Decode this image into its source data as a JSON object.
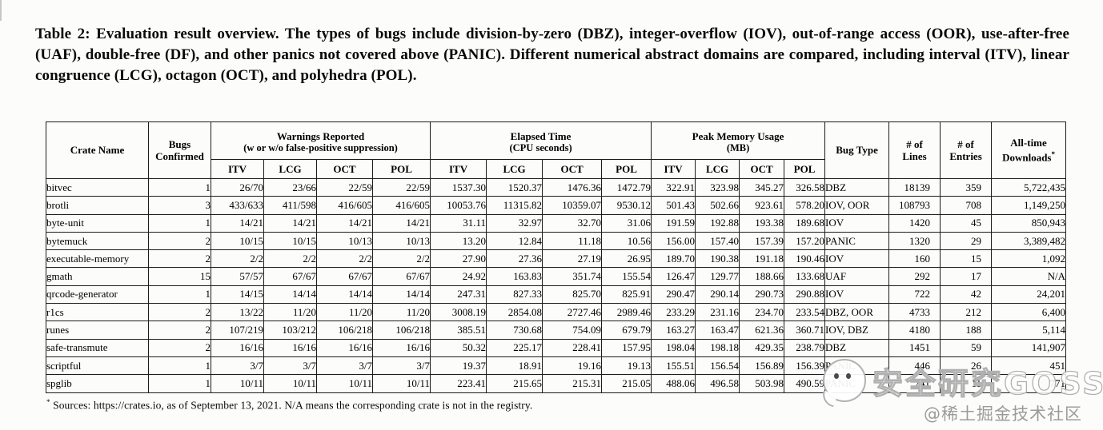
{
  "caption": "Table 2: Evaluation result overview. The types of bugs include division-by-zero (DBZ), integer-overflow (IOV), out-of-range access (OOR), use-after-free (UAF), double-free (DF), and other panics not covered above (PANIC). Different numerical abstract domains are compared, including interval (ITV), linear congruence (LCG), octagon (OCT), and polyhedra (POL).",
  "table": {
    "header": {
      "crate_name": "Crate Name",
      "bugs_line1": "Bugs",
      "bugs_line2": "Confirmed",
      "groups": [
        {
          "title": "Warnings Reported",
          "subtitle": "(w or w/o false-positive suppression)"
        },
        {
          "title": "Elapsed Time",
          "subtitle": "(CPU seconds)"
        },
        {
          "title": "Peak Memory Usage",
          "subtitle": "(MB)"
        }
      ],
      "sub_columns": [
        "ITV",
        "LCG",
        "OCT",
        "POL"
      ],
      "bug_type": "Bug Type",
      "lines_line1": "# of",
      "lines_line2": "Lines",
      "entries_line1": "# of",
      "entries_line2": "Entries",
      "downloads_line1": "All-time",
      "downloads_line2": "Downloads",
      "downloads_mark": "*"
    },
    "rows": [
      {
        "crate": "bitvec",
        "bugs_confirmed": "1",
        "warnings": [
          "26/70",
          "23/66",
          "22/59",
          "22/59"
        ],
        "elapsed": [
          "1537.30",
          "1520.37",
          "1476.36",
          "1472.79"
        ],
        "memory": [
          "322.91",
          "323.98",
          "345.27",
          "326.58"
        ],
        "bug_type": "DBZ",
        "lines": "18139",
        "entries": "359",
        "downloads": "5,722,435"
      },
      {
        "crate": "brotli",
        "bugs_confirmed": "3",
        "warnings": [
          "433/633",
          "411/598",
          "416/605",
          "416/605"
        ],
        "elapsed": [
          "10053.76",
          "11315.82",
          "10359.07",
          "9530.12"
        ],
        "memory": [
          "501.43",
          "502.66",
          "923.61",
          "578.20"
        ],
        "bug_type": "IOV, OOR",
        "lines": "108793",
        "entries": "708",
        "downloads": "1,149,250"
      },
      {
        "crate": "byte-unit",
        "bugs_confirmed": "1",
        "warnings": [
          "14/21",
          "14/21",
          "14/21",
          "14/21"
        ],
        "elapsed": [
          "31.11",
          "32.97",
          "32.70",
          "31.06"
        ],
        "memory": [
          "191.59",
          "192.88",
          "193.38",
          "189.68"
        ],
        "bug_type": "IOV",
        "lines": "1420",
        "entries": "45",
        "downloads": "850,943"
      },
      {
        "crate": "bytemuck",
        "bugs_confirmed": "2",
        "warnings": [
          "10/15",
          "10/15",
          "10/13",
          "10/13"
        ],
        "elapsed": [
          "13.20",
          "12.84",
          "11.18",
          "10.56"
        ],
        "memory": [
          "156.00",
          "157.40",
          "157.39",
          "157.20"
        ],
        "bug_type": "PANIC",
        "lines": "1320",
        "entries": "29",
        "downloads": "3,389,482"
      },
      {
        "crate": "executable-memory",
        "bugs_confirmed": "2",
        "warnings": [
          "2/2",
          "2/2",
          "2/2",
          "2/2"
        ],
        "elapsed": [
          "27.90",
          "27.36",
          "27.19",
          "26.95"
        ],
        "memory": [
          "189.70",
          "190.38",
          "191.18",
          "190.46"
        ],
        "bug_type": "IOV",
        "lines": "160",
        "entries": "15",
        "downloads": "1,092"
      },
      {
        "crate": "gmath",
        "bugs_confirmed": "15",
        "warnings": [
          "57/57",
          "67/67",
          "67/67",
          "67/67"
        ],
        "elapsed": [
          "24.92",
          "163.83",
          "351.74",
          "155.54"
        ],
        "memory": [
          "126.47",
          "129.77",
          "188.66",
          "133.68"
        ],
        "bug_type": "UAF",
        "lines": "292",
        "entries": "17",
        "downloads": "N/A"
      },
      {
        "crate": "qrcode-generator",
        "bugs_confirmed": "1",
        "warnings": [
          "14/15",
          "14/14",
          "14/14",
          "14/14"
        ],
        "elapsed": [
          "247.31",
          "827.33",
          "825.70",
          "825.91"
        ],
        "memory": [
          "290.47",
          "290.14",
          "290.73",
          "290.88"
        ],
        "bug_type": "IOV",
        "lines": "722",
        "entries": "42",
        "downloads": "24,201"
      },
      {
        "crate": "r1cs",
        "bugs_confirmed": "2",
        "warnings": [
          "13/22",
          "11/20",
          "11/20",
          "11/20"
        ],
        "elapsed": [
          "3008.19",
          "2854.08",
          "2727.46",
          "2989.46"
        ],
        "memory": [
          "233.29",
          "231.16",
          "234.70",
          "233.54"
        ],
        "bug_type": "DBZ, OOR",
        "lines": "4733",
        "entries": "212",
        "downloads": "6,400"
      },
      {
        "crate": "runes",
        "bugs_confirmed": "2",
        "warnings": [
          "107/219",
          "103/212",
          "106/218",
          "106/218"
        ],
        "elapsed": [
          "385.51",
          "730.68",
          "754.09",
          "679.79"
        ],
        "memory": [
          "163.27",
          "163.47",
          "621.36",
          "360.71"
        ],
        "bug_type": "IOV, DBZ",
        "lines": "4180",
        "entries": "188",
        "downloads": "5,114"
      },
      {
        "crate": "safe-transmute",
        "bugs_confirmed": "2",
        "warnings": [
          "16/16",
          "16/16",
          "16/16",
          "16/16"
        ],
        "elapsed": [
          "50.32",
          "225.17",
          "228.41",
          "157.95"
        ],
        "memory": [
          "198.04",
          "198.18",
          "429.35",
          "238.79"
        ],
        "bug_type": "DBZ",
        "lines": "1451",
        "entries": "59",
        "downloads": "141,907"
      },
      {
        "crate": "scriptful",
        "bugs_confirmed": "1",
        "warnings": [
          "3/7",
          "3/7",
          "3/7",
          "3/7"
        ],
        "elapsed": [
          "19.37",
          "18.91",
          "19.16",
          "19.13"
        ],
        "memory": [
          "155.51",
          "156.54",
          "156.89",
          "156.39"
        ],
        "bug_type": "PANIC",
        "lines": "446",
        "entries": "26",
        "downloads": "451"
      },
      {
        "crate": "spglib",
        "bugs_confirmed": "1",
        "warnings": [
          "10/11",
          "10/11",
          "10/11",
          "10/11"
        ],
        "elapsed": [
          "223.41",
          "215.65",
          "215.31",
          "215.05"
        ],
        "memory": [
          "488.06",
          "496.58",
          "503.98",
          "490.59"
        ],
        "bug_type": "PANIC",
        "lines": "741",
        "entries": "11",
        "downloads": "771"
      }
    ]
  },
  "footnote": {
    "mark": "*",
    "text": "Sources: https://crates.io, as of September 13, 2021. N/A means the corresponding crate is not in the registry."
  },
  "watermarks": {
    "overlay_text": "安全研究GOSSIP",
    "credit_text": "@稀土掘金技术社区"
  }
}
